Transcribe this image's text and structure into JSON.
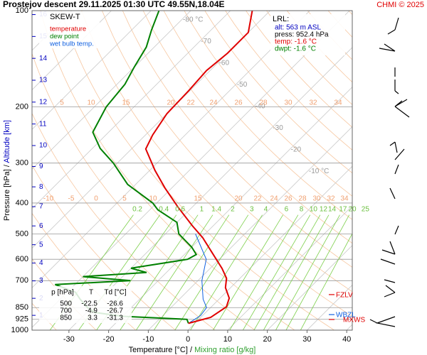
{
  "chart_data": {
    "type": "skew-t",
    "title": "Prostejov   descent   29.11.2025 01:30 UTC  49.55N,18.04E",
    "credit": "CHMI © 2025",
    "chart_label": "SKEW-T",
    "xlabel_parts": [
      "Temperature [°C]",
      "/",
      "Mixing ratio [g/kg]"
    ],
    "ylabel_parts": [
      "Pressure [hPa]",
      "/",
      "Altitude [km]"
    ],
    "xlim": [
      -39.3,
      41.4
    ],
    "xticks": [
      -30,
      -20,
      -10,
      0,
      10,
      20,
      30,
      40
    ],
    "ylim": [
      1000,
      100
    ],
    "log_y": true,
    "yticks": [
      100,
      200,
      300,
      400,
      500,
      600,
      700,
      850,
      925,
      1000
    ],
    "altitude_ticks": [
      16,
      15,
      14,
      13,
      12,
      11,
      10,
      9,
      8,
      7,
      6,
      5,
      4,
      3,
      2,
      1
    ],
    "isotherm_labels": [
      {
        "value": -80,
        "label": "-80 °C"
      },
      -70,
      -60,
      -50,
      -40,
      -30,
      -20,
      {
        "value": -10,
        "label": "-10 °C"
      }
    ],
    "mixing_ratio_labels": [
      0.2,
      0.4,
      0.6,
      1,
      1.4,
      2,
      3,
      4,
      6,
      8,
      10,
      12,
      14,
      17,
      20,
      25
    ],
    "adiabat_labels_upper": [
      5,
      10,
      15,
      20,
      22,
      24,
      26,
      28,
      30,
      32,
      34
    ],
    "adiabat_labels_lower": [
      -10,
      -5,
      0,
      5,
      10,
      15,
      20,
      22,
      24,
      26,
      28,
      30,
      32,
      34
    ],
    "series": [
      {
        "name": "temperature",
        "color": "#e00000",
        "pressure": [
          952,
          912,
          845,
          794,
          736,
          688,
          641,
          572,
          514,
          471,
          412,
          359,
          316,
          271,
          245,
          210,
          178,
          154,
          136,
          117,
          100
        ],
        "values": [
          -1.6,
          2.5,
          3.8,
          2.3,
          -1.3,
          -3.4,
          -7.0,
          -13.5,
          -19.6,
          -25.3,
          -33.6,
          -41.7,
          -48.7,
          -56.4,
          -58.2,
          -60,
          -60.3,
          -60.9,
          -60,
          -60,
          -64.5
        ]
      },
      {
        "name": "dew point",
        "color": "#008000",
        "pressure": [
          952,
          925,
          905,
          880,
          850,
          800,
          760,
          720,
          700,
          680,
          660,
          640,
          600,
          580,
          550,
          500,
          460,
          420,
          400,
          350,
          300,
          270,
          240,
          200,
          170,
          150,
          130,
          115,
          100
        ],
        "values": [
          -1.6,
          -3,
          -20,
          -28,
          -31,
          -35,
          -38,
          -45,
          -27,
          -40,
          -25,
          -30,
          -18,
          -17,
          -20,
          -26.6,
          -30,
          -38,
          -41,
          -52,
          -61,
          -68,
          -74,
          -77,
          -78,
          -80,
          -82,
          -85,
          -88
        ]
      },
      {
        "name": "wet bulb temp.",
        "color": "#1060e0",
        "pressure": [
          952,
          900,
          850,
          800,
          700,
          600,
          500
        ],
        "values": [
          -1.6,
          -0.5,
          -1,
          -4,
          -9,
          -13.3,
          -22.4
        ]
      }
    ],
    "lrl": {
      "title": "LRL:",
      "lines": [
        {
          "text": "alt: 563 m ASL",
          "color": "#0000c0"
        },
        {
          "text": "press: 952.4 hPa",
          "color": "#000000"
        },
        {
          "text": "temp: -1.6 °C",
          "color": "#e00000"
        },
        {
          "text": "dwpt: -1.6 °C",
          "color": "#008000"
        }
      ]
    },
    "table": {
      "header": [
        "p [hPa]",
        "T",
        "Td [°C]"
      ],
      "rows": [
        [
          500,
          -22.5,
          -26.6
        ],
        [
          700,
          -4.9,
          -26.7
        ],
        [
          850,
          3.3,
          -31.3
        ]
      ]
    },
    "levels": [
      {
        "label": "FZLV",
        "color": "#e00000",
        "pressure": 774
      },
      {
        "label": "WBZL",
        "color": "#1060e0",
        "pressure": 894
      },
      {
        "label": "MXWS",
        "color": "#e00000",
        "pressure": 926
      }
    ]
  }
}
